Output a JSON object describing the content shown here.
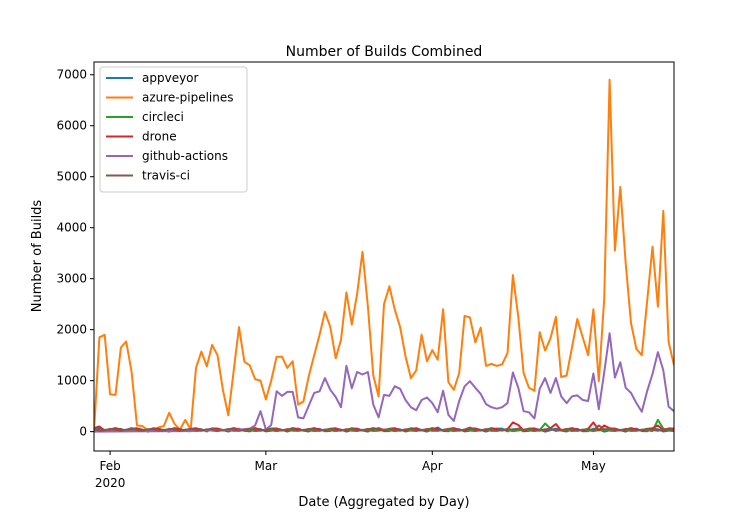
{
  "chart_data": {
    "type": "line",
    "title": "Number of Builds Combined",
    "xlabel": "Date (Aggregated by Day)",
    "ylabel": "Number of Builds",
    "x_range": [
      "2020-01-29",
      "2020-05-16"
    ],
    "ylim": [
      -380,
      7250
    ],
    "x_ticks": [
      {
        "date": "2020-02-01",
        "label": "Feb",
        "sub": "2020"
      },
      {
        "date": "2020-03-01",
        "label": "Mar",
        "sub": ""
      },
      {
        "date": "2020-04-01",
        "label": "Apr",
        "sub": ""
      },
      {
        "date": "2020-05-01",
        "label": "May",
        "sub": ""
      }
    ],
    "y_ticks": [
      0,
      1000,
      2000,
      3000,
      4000,
      5000,
      6000,
      7000
    ],
    "legend_position": "top-left",
    "grid": false,
    "series": [
      {
        "name": "appveyor",
        "color": "#1f77b4",
        "base": [
          0,
          60
        ],
        "points": [
          [
            "2020-02-20",
            60
          ],
          [
            "2020-03-29",
            70
          ],
          [
            "2020-04-02",
            80
          ],
          [
            "2020-04-14",
            60
          ]
        ]
      },
      {
        "name": "azure-pipelines",
        "color": "#ff7f0e",
        "points": [
          [
            "2020-01-29",
            0
          ],
          [
            "2020-01-30",
            1850
          ],
          [
            "2020-01-31",
            1900
          ],
          [
            "2020-02-01",
            730
          ],
          [
            "2020-02-02",
            720
          ],
          [
            "2020-02-03",
            1650
          ],
          [
            "2020-02-04",
            1770
          ],
          [
            "2020-02-05",
            1170
          ],
          [
            "2020-02-06",
            120
          ],
          [
            "2020-02-07",
            110
          ],
          [
            "2020-02-08",
            30
          ],
          [
            "2020-02-09",
            20
          ],
          [
            "2020-02-10",
            80
          ],
          [
            "2020-02-11",
            110
          ],
          [
            "2020-02-12",
            370
          ],
          [
            "2020-02-13",
            150
          ],
          [
            "2020-02-14",
            40
          ],
          [
            "2020-02-15",
            230
          ],
          [
            "2020-02-16",
            40
          ],
          [
            "2020-02-17",
            1250
          ],
          [
            "2020-02-18",
            1570
          ],
          [
            "2020-02-19",
            1280
          ],
          [
            "2020-02-20",
            1700
          ],
          [
            "2020-02-21",
            1500
          ],
          [
            "2020-02-22",
            820
          ],
          [
            "2020-02-23",
            320
          ],
          [
            "2020-02-24",
            1180
          ],
          [
            "2020-02-25",
            2050
          ],
          [
            "2020-02-26",
            1370
          ],
          [
            "2020-02-27",
            1300
          ],
          [
            "2020-02-28",
            1030
          ],
          [
            "2020-02-29",
            1000
          ],
          [
            "2020-03-01",
            630
          ],
          [
            "2020-03-02",
            1000
          ],
          [
            "2020-03-03",
            1470
          ],
          [
            "2020-03-04",
            1470
          ],
          [
            "2020-03-05",
            1250
          ],
          [
            "2020-03-06",
            1380
          ],
          [
            "2020-03-07",
            530
          ],
          [
            "2020-03-08",
            590
          ],
          [
            "2020-03-09",
            1090
          ],
          [
            "2020-03-10",
            1500
          ],
          [
            "2020-03-11",
            1900
          ],
          [
            "2020-03-12",
            2350
          ],
          [
            "2020-03-13",
            2050
          ],
          [
            "2020-03-14",
            1440
          ],
          [
            "2020-03-15",
            1800
          ],
          [
            "2020-03-16",
            2730
          ],
          [
            "2020-03-17",
            2100
          ],
          [
            "2020-03-18",
            2700
          ],
          [
            "2020-03-19",
            3530
          ],
          [
            "2020-03-20",
            2450
          ],
          [
            "2020-03-21",
            1100
          ],
          [
            "2020-03-22",
            690
          ],
          [
            "2020-03-23",
            2500
          ],
          [
            "2020-03-24",
            2850
          ],
          [
            "2020-03-25",
            2400
          ],
          [
            "2020-03-26",
            2050
          ],
          [
            "2020-03-27",
            1480
          ],
          [
            "2020-03-28",
            1050
          ],
          [
            "2020-03-29",
            1200
          ],
          [
            "2020-03-30",
            1900
          ],
          [
            "2020-03-31",
            1380
          ],
          [
            "2020-04-01",
            1600
          ],
          [
            "2020-04-02",
            1410
          ],
          [
            "2020-04-03",
            2400
          ],
          [
            "2020-04-04",
            970
          ],
          [
            "2020-04-05",
            820
          ],
          [
            "2020-04-06",
            1150
          ],
          [
            "2020-04-07",
            2270
          ],
          [
            "2020-04-08",
            2240
          ],
          [
            "2020-04-09",
            1750
          ],
          [
            "2020-04-10",
            2040
          ],
          [
            "2020-04-11",
            1290
          ],
          [
            "2020-04-12",
            1330
          ],
          [
            "2020-04-13",
            1290
          ],
          [
            "2020-04-14",
            1320
          ],
          [
            "2020-04-15",
            1540
          ],
          [
            "2020-04-16",
            3070
          ],
          [
            "2020-04-17",
            2250
          ],
          [
            "2020-04-18",
            1150
          ],
          [
            "2020-04-19",
            860
          ],
          [
            "2020-04-20",
            800
          ],
          [
            "2020-04-21",
            1950
          ],
          [
            "2020-04-22",
            1590
          ],
          [
            "2020-04-23",
            1830
          ],
          [
            "2020-04-24",
            2250
          ],
          [
            "2020-04-25",
            1070
          ],
          [
            "2020-04-26",
            1100
          ],
          [
            "2020-04-27",
            1650
          ],
          [
            "2020-04-28",
            2210
          ],
          [
            "2020-04-29",
            1850
          ],
          [
            "2020-04-30",
            1500
          ],
          [
            "2020-05-01",
            2400
          ],
          [
            "2020-05-02",
            990
          ],
          [
            "2020-05-03",
            2600
          ],
          [
            "2020-05-04",
            6900
          ],
          [
            "2020-05-05",
            3550
          ],
          [
            "2020-05-06",
            4800
          ],
          [
            "2020-05-07",
            3300
          ],
          [
            "2020-05-08",
            2130
          ],
          [
            "2020-05-09",
            1620
          ],
          [
            "2020-05-10",
            1500
          ],
          [
            "2020-05-11",
            2550
          ],
          [
            "2020-05-12",
            3630
          ],
          [
            "2020-05-13",
            2450
          ],
          [
            "2020-05-14",
            4330
          ],
          [
            "2020-05-15",
            1760
          ],
          [
            "2020-05-16",
            1300
          ]
        ]
      },
      {
        "name": "circleci",
        "color": "#2ca02c",
        "base": [
          10,
          40
        ],
        "points": [
          [
            "2020-04-22",
            160
          ],
          [
            "2020-04-23",
            60
          ],
          [
            "2020-05-13",
            230
          ],
          [
            "2020-05-14",
            60
          ]
        ]
      },
      {
        "name": "drone",
        "color": "#d62728",
        "base": [
          20,
          70
        ],
        "points": [
          [
            "2020-01-30",
            100
          ],
          [
            "2020-04-16",
            180
          ],
          [
            "2020-04-17",
            130
          ],
          [
            "2020-04-24",
            150
          ],
          [
            "2020-05-01",
            180
          ],
          [
            "2020-05-03",
            120
          ],
          [
            "2020-05-13",
            120
          ]
        ]
      },
      {
        "name": "github-actions",
        "color": "#9467bd",
        "points": [
          [
            "2020-01-29",
            0
          ],
          [
            "2020-02-15",
            10
          ],
          [
            "2020-02-25",
            40
          ],
          [
            "2020-02-27",
            60
          ],
          [
            "2020-02-28",
            120
          ],
          [
            "2020-02-29",
            400
          ],
          [
            "2020-03-01",
            40
          ],
          [
            "2020-03-02",
            130
          ],
          [
            "2020-03-03",
            790
          ],
          [
            "2020-03-04",
            700
          ],
          [
            "2020-03-05",
            780
          ],
          [
            "2020-03-06",
            780
          ],
          [
            "2020-03-07",
            280
          ],
          [
            "2020-03-08",
            260
          ],
          [
            "2020-03-09",
            510
          ],
          [
            "2020-03-10",
            760
          ],
          [
            "2020-03-11",
            790
          ],
          [
            "2020-03-12",
            1050
          ],
          [
            "2020-03-13",
            820
          ],
          [
            "2020-03-14",
            680
          ],
          [
            "2020-03-15",
            480
          ],
          [
            "2020-03-16",
            1290
          ],
          [
            "2020-03-17",
            850
          ],
          [
            "2020-03-18",
            1170
          ],
          [
            "2020-03-19",
            1120
          ],
          [
            "2020-03-20",
            1170
          ],
          [
            "2020-03-21",
            530
          ],
          [
            "2020-03-22",
            280
          ],
          [
            "2020-03-23",
            720
          ],
          [
            "2020-03-24",
            700
          ],
          [
            "2020-03-25",
            890
          ],
          [
            "2020-03-26",
            840
          ],
          [
            "2020-03-27",
            620
          ],
          [
            "2020-03-28",
            480
          ],
          [
            "2020-03-29",
            420
          ],
          [
            "2020-03-30",
            620
          ],
          [
            "2020-03-31",
            670
          ],
          [
            "2020-04-01",
            560
          ],
          [
            "2020-04-02",
            380
          ],
          [
            "2020-04-03",
            800
          ],
          [
            "2020-04-04",
            330
          ],
          [
            "2020-04-05",
            210
          ],
          [
            "2020-04-06",
            600
          ],
          [
            "2020-04-07",
            890
          ],
          [
            "2020-04-08",
            990
          ],
          [
            "2020-04-09",
            860
          ],
          [
            "2020-04-10",
            740
          ],
          [
            "2020-04-11",
            540
          ],
          [
            "2020-04-12",
            480
          ],
          [
            "2020-04-13",
            450
          ],
          [
            "2020-04-14",
            480
          ],
          [
            "2020-04-15",
            560
          ],
          [
            "2020-04-16",
            1160
          ],
          [
            "2020-04-17",
            860
          ],
          [
            "2020-04-18",
            400
          ],
          [
            "2020-04-19",
            380
          ],
          [
            "2020-04-20",
            260
          ],
          [
            "2020-04-21",
            840
          ],
          [
            "2020-04-22",
            1050
          ],
          [
            "2020-04-23",
            760
          ],
          [
            "2020-04-24",
            1050
          ],
          [
            "2020-04-25",
            690
          ],
          [
            "2020-04-26",
            560
          ],
          [
            "2020-04-27",
            690
          ],
          [
            "2020-04-28",
            710
          ],
          [
            "2020-04-29",
            620
          ],
          [
            "2020-04-30",
            600
          ],
          [
            "2020-05-01",
            1140
          ],
          [
            "2020-05-02",
            440
          ],
          [
            "2020-05-03",
            1160
          ],
          [
            "2020-05-04",
            1930
          ],
          [
            "2020-05-05",
            1060
          ],
          [
            "2020-05-06",
            1360
          ],
          [
            "2020-05-07",
            860
          ],
          [
            "2020-05-08",
            760
          ],
          [
            "2020-05-09",
            560
          ],
          [
            "2020-05-10",
            390
          ],
          [
            "2020-05-11",
            790
          ],
          [
            "2020-05-12",
            1130
          ],
          [
            "2020-05-13",
            1560
          ],
          [
            "2020-05-14",
            1200
          ],
          [
            "2020-05-15",
            490
          ],
          [
            "2020-05-16",
            400
          ]
        ]
      },
      {
        "name": "travis-ci",
        "color": "#8c564b",
        "base": [
          15,
          55
        ],
        "points": [
          [
            "2020-02-05",
            70
          ],
          [
            "2020-03-22",
            70
          ],
          [
            "2020-04-08",
            80
          ],
          [
            "2020-04-17",
            60
          ],
          [
            "2020-05-02",
            120
          ]
        ]
      }
    ]
  }
}
